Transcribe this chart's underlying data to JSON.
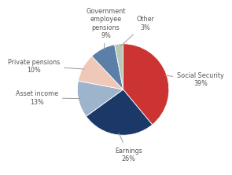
{
  "slices": [
    {
      "label": "Social Security\n39%",
      "value": 39,
      "color": "#cc3333"
    },
    {
      "label": "Earnings\n26%",
      "value": 26,
      "color": "#1c3868"
    },
    {
      "label": "Asset income\n13%",
      "value": 13,
      "color": "#9db4cc"
    },
    {
      "label": "Private pensions\n10%",
      "value": 10,
      "color": "#f0c8b8"
    },
    {
      "label": "Government\nemployee\npensions\n9%",
      "value": 9,
      "color": "#5b7fa6"
    },
    {
      "label": "Other\n3%",
      "value": 3,
      "color": "#b8c8b4"
    }
  ],
  "startangle": 90,
  "bg_color": "#ffffff",
  "label_fontsize": 5.8,
  "label_color": "#555555",
  "line_color": "#999999"
}
